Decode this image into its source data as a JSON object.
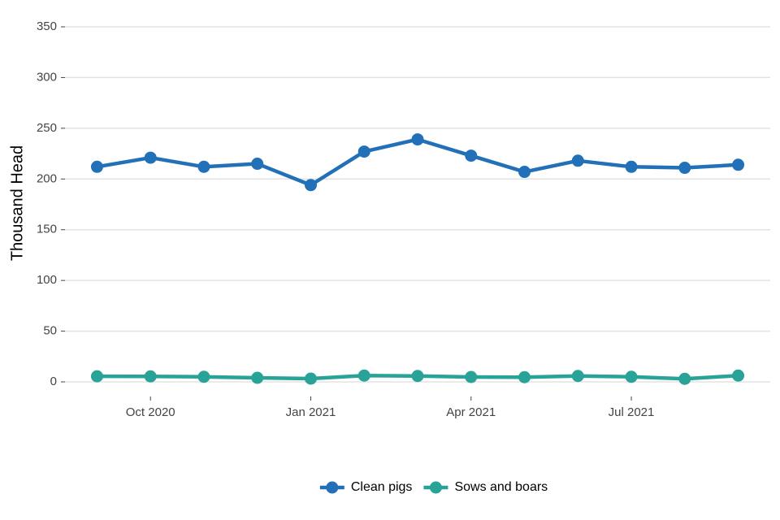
{
  "chart_data": {
    "type": "line",
    "ylabel": "Thousand Head",
    "x": [
      "2020-09",
      "2020-10",
      "2020-11",
      "2020-12",
      "2021-01",
      "2021-02",
      "2021-03",
      "2021-04",
      "2021-05",
      "2021-06",
      "2021-07",
      "2021-08",
      "2021-09"
    ],
    "xlim": [
      "2020-09",
      "2021-09"
    ],
    "xticks": [
      {
        "value": "2020-10",
        "label": "Oct 2020"
      },
      {
        "value": "2021-01",
        "label": "Jan 2021"
      },
      {
        "value": "2021-04",
        "label": "Apr 2021"
      },
      {
        "value": "2021-07",
        "label": "Jul 2021"
      }
    ],
    "ylim": [
      0,
      350
    ],
    "yticks": [
      0,
      50,
      100,
      150,
      200,
      250,
      300,
      350
    ],
    "grid": true,
    "legend": "bottom",
    "series": [
      {
        "name": "Clean pigs",
        "color": "#2170b8",
        "values": [
          212,
          221,
          212,
          215,
          194,
          227,
          239,
          223,
          207,
          218,
          212,
          211,
          214
        ]
      },
      {
        "name": "Sows and boars",
        "color": "#29a298",
        "values": [
          5.5,
          5.4,
          5,
          4,
          3.2,
          6.2,
          5.8,
          4.8,
          4.6,
          5.8,
          5,
          3,
          6.2
        ]
      }
    ]
  }
}
